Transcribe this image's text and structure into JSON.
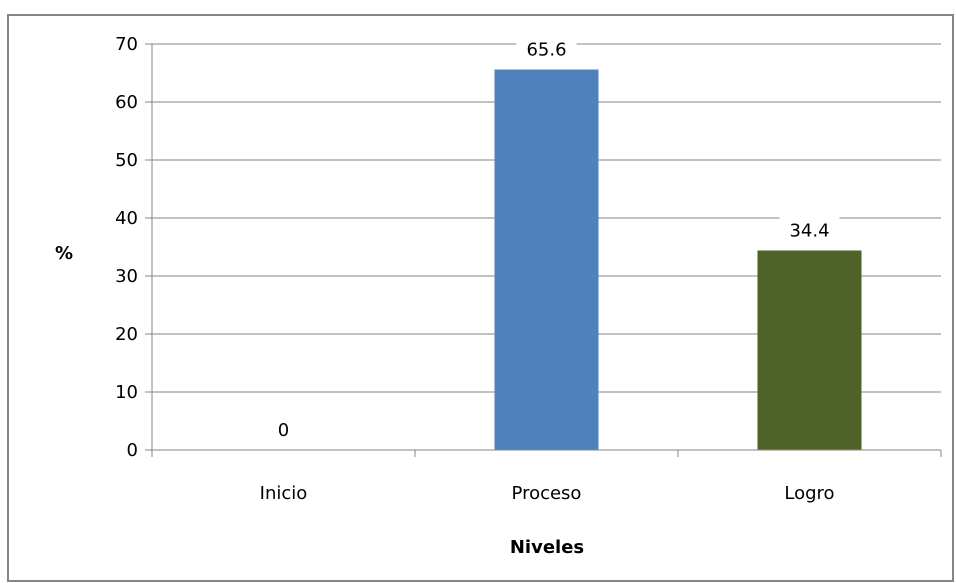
{
  "chart_data": {
    "type": "bar",
    "title": "",
    "xlabel": "Niveles",
    "ylabel": "%",
    "categories": [
      "Inicio",
      "Proceso",
      "Logro"
    ],
    "values": [
      0,
      65.6,
      34.4
    ],
    "data_labels": [
      "0",
      "65.6",
      "34.4"
    ],
    "ylim": [
      0,
      70
    ],
    "yticks": [
      0,
      10,
      20,
      30,
      40,
      50,
      60,
      70
    ],
    "grid": true,
    "legend": "none",
    "colors": [
      "#4F81BD",
      "#4F81BD",
      "#4F6228"
    ]
  }
}
